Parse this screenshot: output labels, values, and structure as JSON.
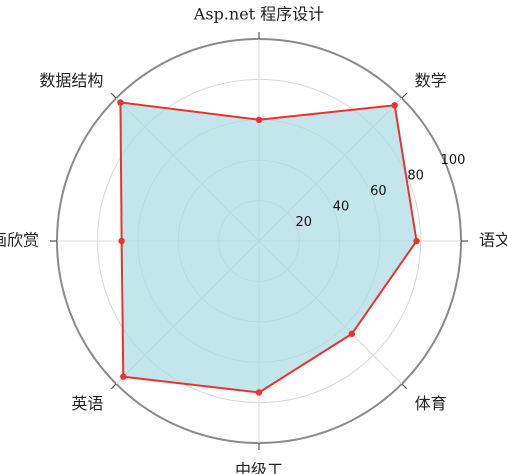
{
  "chart_data": {
    "type": "radar",
    "axes": [
      "语文",
      "数学",
      "Asp.net 程序设计",
      "数据结构",
      "动画欣赏",
      "英语",
      "中级工",
      "体育"
    ],
    "values": [
      78,
      95,
      60,
      97,
      68,
      95,
      75,
      65
    ],
    "rlim": [
      0,
      100
    ],
    "rticks": [
      20,
      40,
      60,
      80,
      100
    ],
    "rtick_labels": [
      "20",
      "40",
      "60",
      "80",
      "100"
    ],
    "grid": true,
    "colors": {
      "line": "#e8322e",
      "fill": "#a9dce6",
      "grid": "#d8d8d8",
      "frame": "#8a8a8a"
    }
  }
}
